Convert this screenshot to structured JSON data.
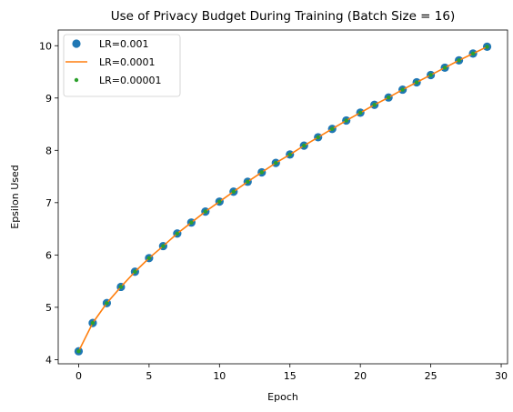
{
  "chart_data": {
    "type": "line",
    "title": "Use of Privacy Budget During Training (Batch Size = 16)",
    "xlabel": "Epoch",
    "ylabel": "Epsilon Used",
    "xlim": [
      -1.45,
      30.45
    ],
    "ylim": [
      3.92,
      10.3
    ],
    "xticks": [
      0,
      5,
      10,
      15,
      20,
      25,
      30
    ],
    "yticks": [
      4,
      5,
      6,
      7,
      8,
      9,
      10
    ],
    "grid": false,
    "legend_position": "top-left",
    "x": [
      0,
      1,
      2,
      3,
      4,
      5,
      6,
      7,
      8,
      9,
      10,
      11,
      12,
      13,
      14,
      15,
      16,
      17,
      18,
      19,
      20,
      21,
      22,
      23,
      24,
      25,
      26,
      27,
      28,
      29
    ],
    "series": [
      {
        "name": "LR=0.001",
        "style": "markers",
        "marker_size": "large",
        "color": "#1f77b4",
        "values": [
          4.16,
          4.7,
          5.08,
          5.39,
          5.68,
          5.94,
          6.17,
          6.41,
          6.62,
          6.83,
          7.02,
          7.21,
          7.4,
          7.58,
          7.76,
          7.92,
          8.09,
          8.25,
          8.41,
          8.57,
          8.72,
          8.87,
          9.01,
          9.16,
          9.3,
          9.44,
          9.58,
          9.72,
          9.85,
          9.98
        ]
      },
      {
        "name": "LR=0.0001",
        "style": "line",
        "color": "#ff7f0e",
        "values": [
          4.16,
          4.7,
          5.08,
          5.39,
          5.68,
          5.94,
          6.17,
          6.41,
          6.62,
          6.83,
          7.02,
          7.21,
          7.4,
          7.58,
          7.76,
          7.92,
          8.09,
          8.25,
          8.41,
          8.57,
          8.72,
          8.87,
          9.01,
          9.16,
          9.3,
          9.44,
          9.58,
          9.72,
          9.85,
          9.98
        ]
      },
      {
        "name": "LR=0.00001",
        "style": "markers",
        "marker_size": "small",
        "color": "#2ca02c",
        "values": [
          4.16,
          4.7,
          5.08,
          5.39,
          5.68,
          5.94,
          6.17,
          6.41,
          6.62,
          6.83,
          7.02,
          7.21,
          7.4,
          7.58,
          7.76,
          7.92,
          8.09,
          8.25,
          8.41,
          8.57,
          8.72,
          8.87,
          9.01,
          9.16,
          9.3,
          9.44,
          9.58,
          9.72,
          9.85,
          9.98
        ]
      }
    ]
  }
}
